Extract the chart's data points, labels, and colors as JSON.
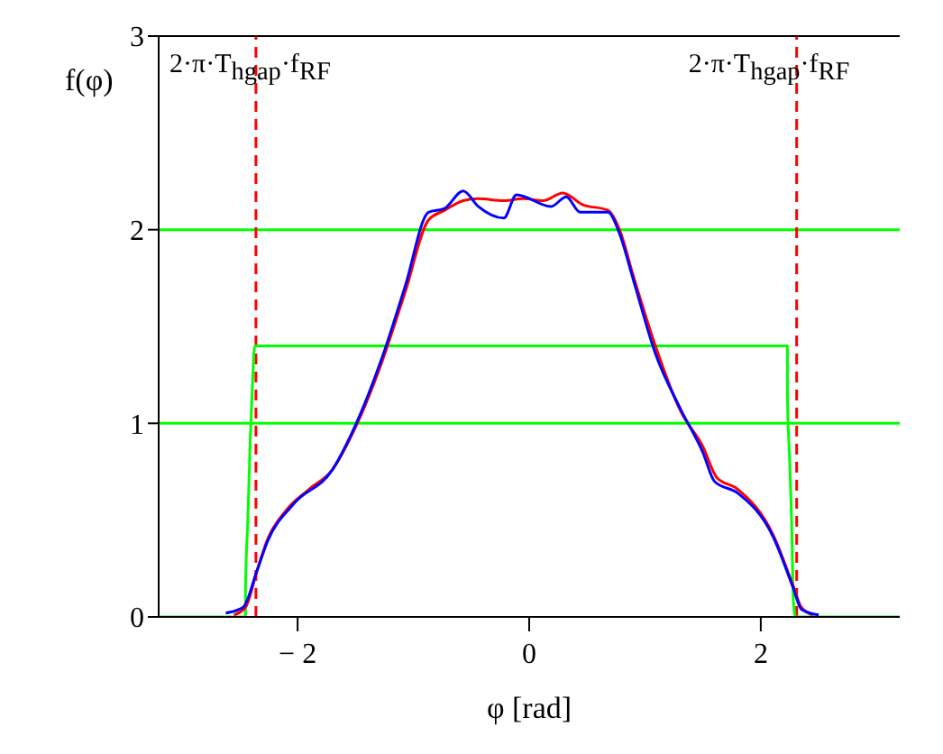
{
  "chart_data": {
    "type": "line",
    "xlabel": "φ [rad]",
    "ylabel": "f(φ)",
    "xlim": [
      -3.2,
      3.2
    ],
    "xticks": [
      -2,
      0,
      2
    ],
    "ylim": [
      0,
      3
    ],
    "yticks": [
      0,
      1,
      2,
      3
    ],
    "grid": false,
    "legend": false,
    "marker": "none",
    "series": [
      {
        "color": "#00ff00",
        "x": [
          -3.2,
          -2.45,
          -2.45,
          -2.43,
          -2.41,
          -2.39,
          -2.37,
          2.23,
          2.23,
          2.25,
          2.27,
          2.28,
          2.3,
          3.2
        ],
        "values": [
          0,
          0,
          0.15,
          0.5,
          0.9,
          1.2,
          1.4,
          1.4,
          1.15,
          0.8,
          0.4,
          0.1,
          0,
          0
        ]
      },
      {
        "color": "#ff0000",
        "x": [
          -2.55,
          -2.45,
          -2.35,
          -2.26,
          -2.1,
          -1.9,
          -1.7,
          -1.5,
          -1.27,
          -1.07,
          -0.87,
          -0.73,
          -0.57,
          -0.44,
          -0.22,
          -0.05,
          0.12,
          0.29,
          0.46,
          0.68,
          0.78,
          0.9,
          1.09,
          1.31,
          1.5,
          1.62,
          1.8,
          2.11,
          2.28,
          2.35,
          2.45
        ],
        "values": [
          0.01,
          0.05,
          0.24,
          0.4,
          0.55,
          0.66,
          0.76,
          0.98,
          1.32,
          1.68,
          2.05,
          2.1,
          2.15,
          2.16,
          2.15,
          2.16,
          2.15,
          2.19,
          2.13,
          2.1,
          2.0,
          1.76,
          1.4,
          1.06,
          0.88,
          0.72,
          0.66,
          0.42,
          0.16,
          0.05,
          0.01
        ]
      },
      {
        "color": "#0000ff",
        "x": [
          -2.62,
          -2.47,
          -2.35,
          -2.26,
          -2.04,
          -1.7,
          -1.5,
          -1.27,
          -1.07,
          -0.87,
          -0.73,
          -0.57,
          -0.44,
          -0.22,
          -0.11,
          0.19,
          0.32,
          0.44,
          0.68,
          0.78,
          0.9,
          1.09,
          1.31,
          1.5,
          1.6,
          1.8,
          2.11,
          2.28,
          2.35,
          2.5
        ],
        "values": [
          0.02,
          0.05,
          0.24,
          0.39,
          0.58,
          0.76,
          0.99,
          1.34,
          1.71,
          2.09,
          2.11,
          2.2,
          2.12,
          2.06,
          2.18,
          2.12,
          2.17,
          2.09,
          2.09,
          1.98,
          1.74,
          1.36,
          1.07,
          0.85,
          0.7,
          0.64,
          0.41,
          0.15,
          0.04,
          0.01
        ]
      }
    ],
    "ref_lines": [
      {
        "axis": "y",
        "value": 1,
        "color": "#00ff00",
        "line_style": "solid"
      },
      {
        "axis": "y",
        "value": 2,
        "color": "#00ff00",
        "line_style": "solid"
      },
      {
        "axis": "x",
        "value": -2.36,
        "color": "#ff0000",
        "line_style": "dashed",
        "label": "2·π·T$_{hgap}$·f$_{RF}$"
      },
      {
        "axis": "x",
        "value": 2.31,
        "color": "#ff0000",
        "line_style": "dashed",
        "label": "2·π·T$_{hgap}$·f$_{RF}$"
      }
    ]
  }
}
